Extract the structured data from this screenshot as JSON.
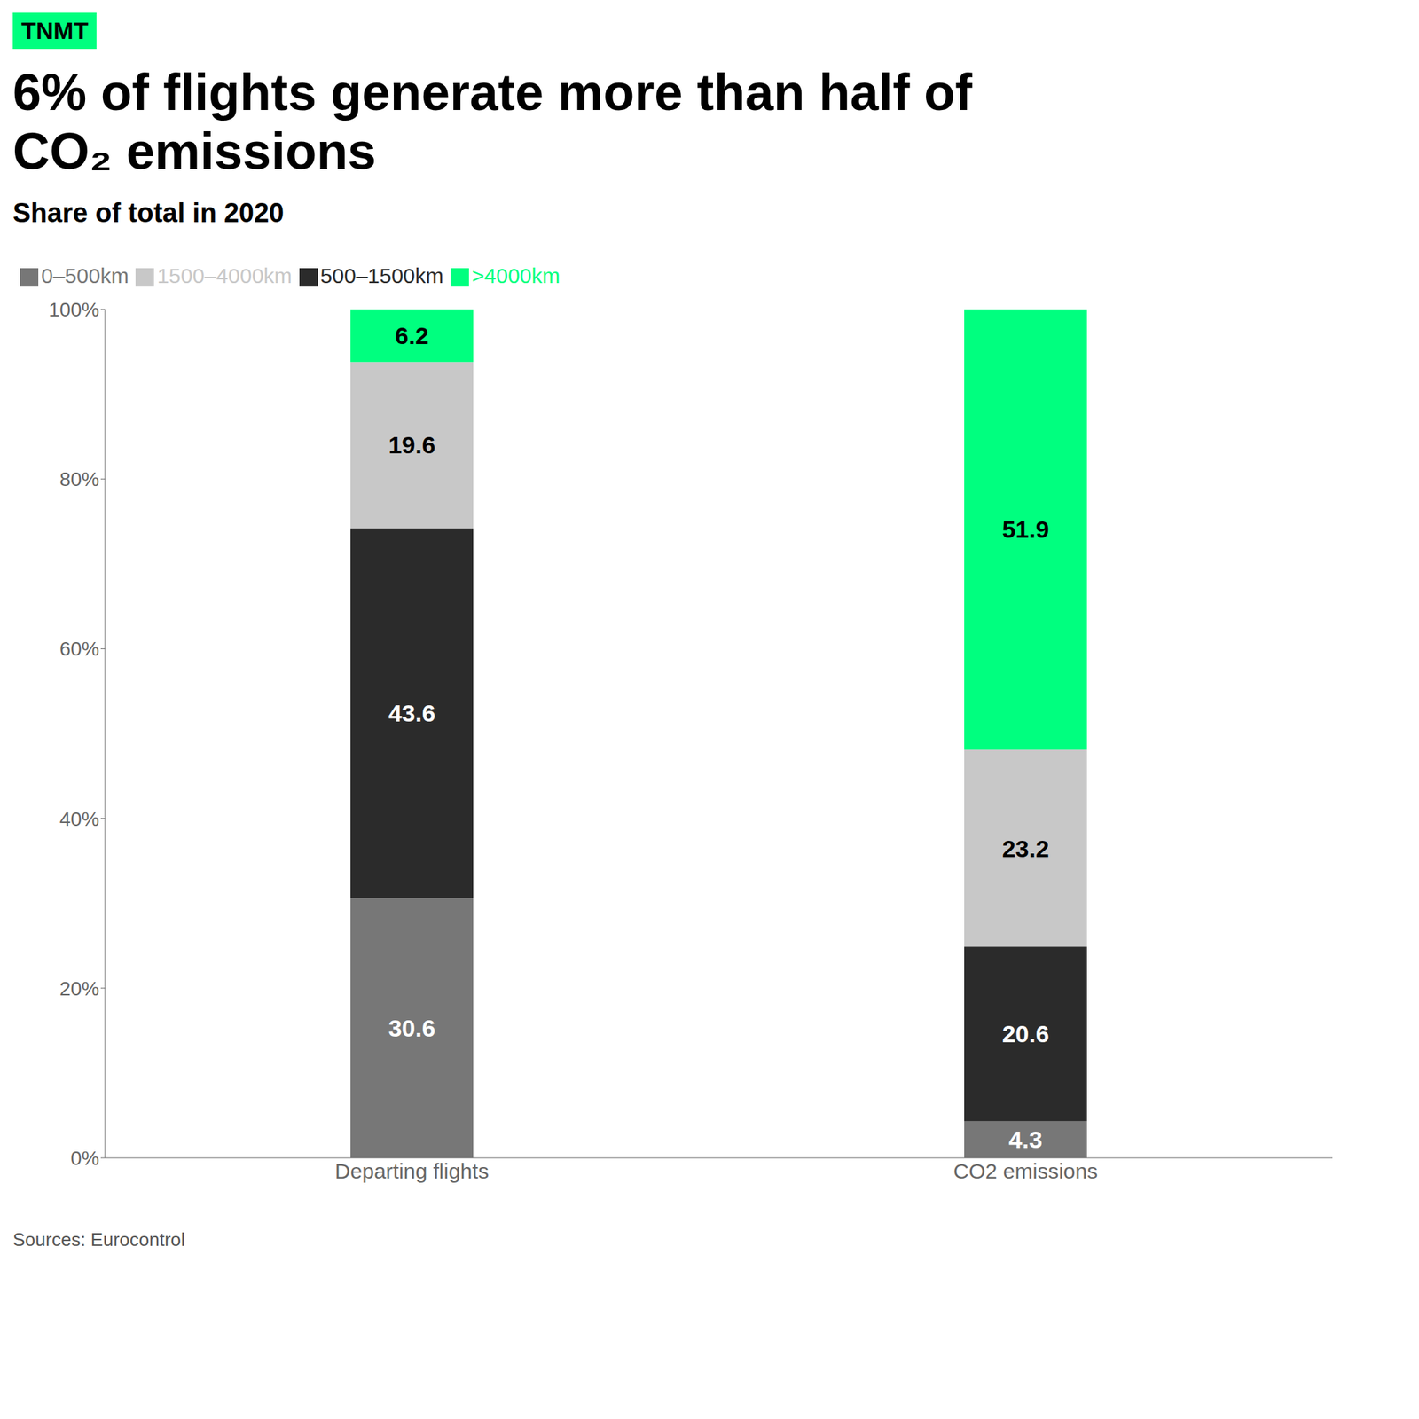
{
  "chart_data": {
    "type": "bar",
    "stacked": true,
    "title": "6% of flights generate more than half of CO₂ emissions",
    "subtitle": "Share of total in 2020",
    "source": "Sources: Eurocontrol",
    "annotations": [
      {
        "text": "TNMT",
        "color": "#00FF7F"
      }
    ],
    "categories": [
      "Departing flights",
      "CO2 emissions"
    ],
    "series": [
      {
        "name": "0–500km",
        "color": "#777777",
        "values": [
          30.6,
          4.3
        ]
      },
      {
        "name": "500–1500km",
        "color": "#2b2b2b",
        "values": [
          43.6,
          20.6
        ]
      },
      {
        "name": "1500–4000km",
        "color": "#c8c8c8",
        "values": [
          19.6,
          23.2
        ]
      },
      {
        "name": ">4000km",
        "color": "#00FF7F",
        "values": [
          6.2,
          51.9
        ]
      }
    ],
    "ylim": [
      0,
      100
    ],
    "yticks": [
      {
        "value": 0,
        "label": "0%"
      },
      {
        "value": 20,
        "label": "20%"
      },
      {
        "value": 40,
        "label": "40%"
      },
      {
        "value": 60,
        "label": "60%"
      },
      {
        "value": 80,
        "label": "80%"
      },
      {
        "value": 100,
        "label": "100%"
      }
    ],
    "grid": false,
    "legend": "top-left",
    "data_labels": true
  }
}
